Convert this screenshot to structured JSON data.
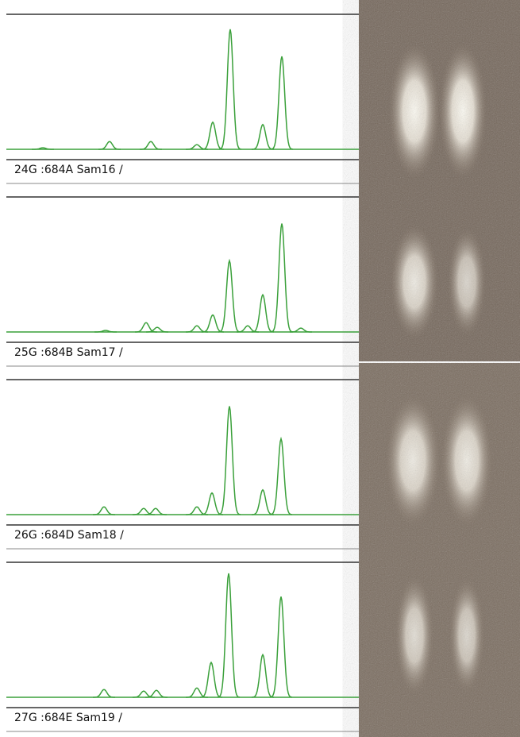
{
  "chart_data": [
    {
      "type": "peaks",
      "title": "24G :684A Sam16 /",
      "x": [
        46,
        130,
        182,
        240,
        260,
        282,
        323,
        347
      ],
      "values": [
        2,
        10,
        10,
        6,
        35,
        155,
        32,
        120
      ],
      "xlim": [
        0,
        444
      ],
      "ylim": [
        0,
        160
      ],
      "color": "#3aa03a"
    },
    {
      "type": "peaks",
      "title": "25G :684B Sam17 /",
      "x": [
        125,
        176,
        190,
        240,
        260,
        281,
        304,
        323,
        347,
        371
      ],
      "values": [
        2,
        12,
        6,
        8,
        22,
        92,
        8,
        48,
        140,
        5
      ],
      "xlim": [
        0,
        444
      ],
      "ylim": [
        0,
        160
      ],
      "color": "#3aa03a"
    },
    {
      "type": "peaks",
      "title": "26G :684D Sam18 /",
      "x": [
        123,
        173,
        188,
        240,
        259,
        281,
        323,
        346
      ],
      "values": [
        10,
        8,
        8,
        10,
        28,
        140,
        32,
        98
      ],
      "xlim": [
        0,
        444
      ],
      "ylim": [
        0,
        160
      ],
      "color": "#3aa03a"
    },
    {
      "type": "peaks",
      "title": "27G :684E Sam19 /",
      "x": [
        123,
        173,
        189,
        240,
        258,
        280,
        323,
        346
      ],
      "values": [
        10,
        8,
        9,
        12,
        45,
        160,
        55,
        130
      ],
      "xlim": [
        0,
        444
      ],
      "ylim": [
        0,
        160
      ],
      "color": "#3aa03a"
    }
  ]
}
